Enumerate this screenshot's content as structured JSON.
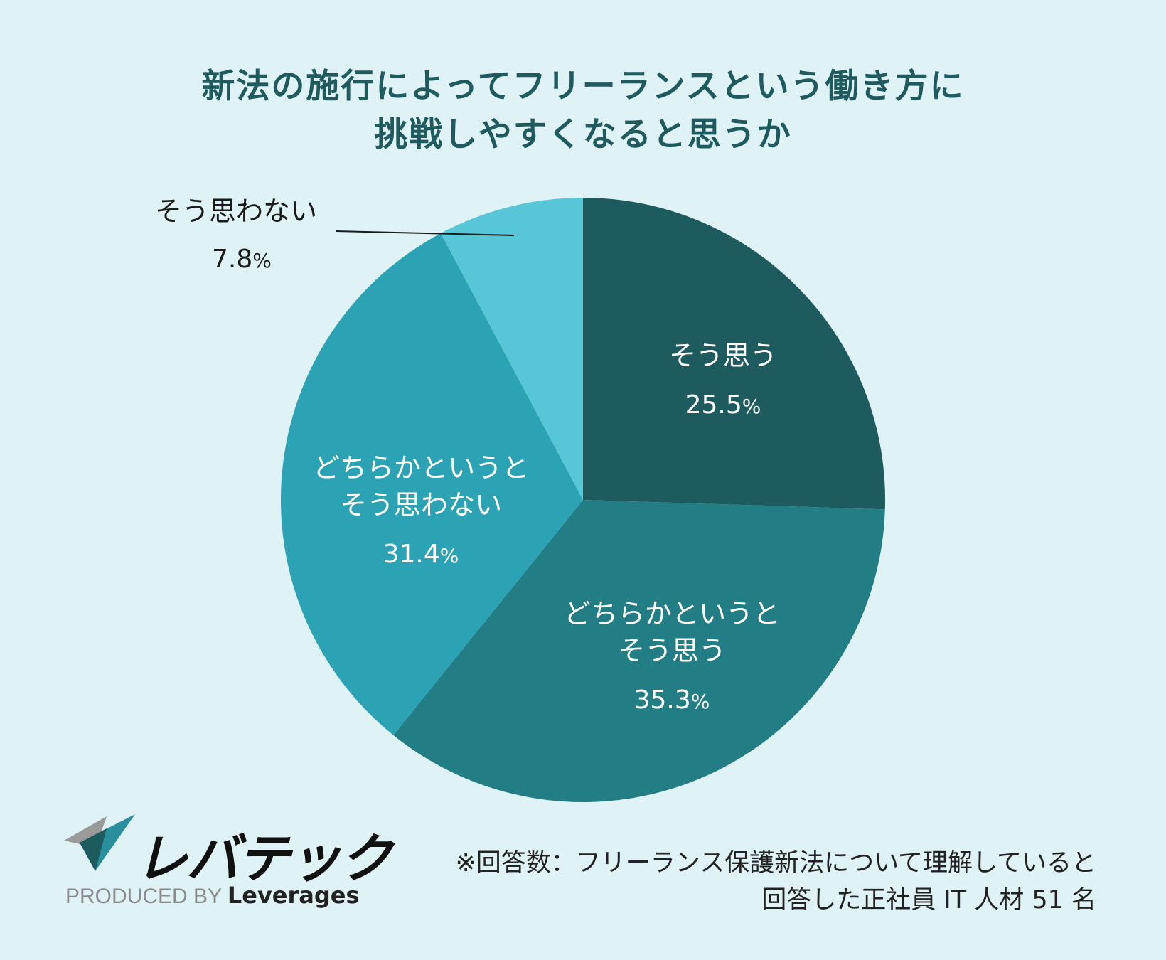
{
  "title": {
    "line1": "新法の施行によってフリーランスという働き方に",
    "line2": "挑戦しやすくなると思うか"
  },
  "chart_data": {
    "type": "pie",
    "title": "新法の施行によってフリーランスという働き方に挑戦しやすくなると思うか",
    "slices": [
      {
        "label": "そう思う",
        "value": 25.5,
        "value_text": "25.5",
        "unit": "%",
        "color": "#1e5b5e",
        "label_lines": [
          "そう思う"
        ]
      },
      {
        "label": "どちらかというとそう思う",
        "value": 35.3,
        "value_text": "35.3",
        "unit": "%",
        "color": "#237d85",
        "label_lines": [
          "どちらかというと",
          "そう思う"
        ]
      },
      {
        "label": "どちらかというとそう思わない",
        "value": 31.4,
        "value_text": "31.4",
        "unit": "%",
        "color": "#2ba3b4",
        "label_lines": [
          "どちらかというと",
          "そう思わない"
        ]
      },
      {
        "label": "そう思わない",
        "value": 7.8,
        "value_text": "7.8",
        "unit": "%",
        "color": "#57c6d6",
        "label_lines": [
          "そう思わない"
        ]
      }
    ]
  },
  "footer": {
    "brand": "レバテック",
    "produced_by": "PRODUCED BY",
    "company": "Leverages",
    "note_line1": "※回答数：フリーランス保護新法について理解していると",
    "note_line2": "回答した正社員 IT 人材 51 名"
  }
}
